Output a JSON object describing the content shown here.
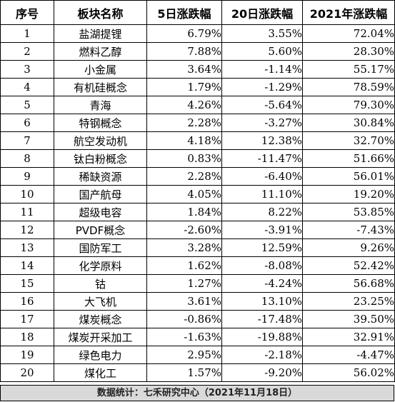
{
  "table": {
    "headers": [
      "序号",
      "板块名称",
      "5日涨跌幅",
      "20日涨跌幅",
      "2021年涨跌幅"
    ],
    "rows": [
      [
        "1",
        "盐湖提锂",
        "6.79%",
        "3.55%",
        "72.04%"
      ],
      [
        "2",
        "燃料乙醇",
        "7.88%",
        "5.60%",
        "28.30%"
      ],
      [
        "3",
        "小金属",
        "3.64%",
        "-1.14%",
        "55.17%"
      ],
      [
        "4",
        "有机硅概念",
        "1.79%",
        "-1.29%",
        "78.59%"
      ],
      [
        "5",
        "青海",
        "4.26%",
        "-5.64%",
        "79.30%"
      ],
      [
        "6",
        "特钢概念",
        "2.28%",
        "-3.27%",
        "30.84%"
      ],
      [
        "7",
        "航空发动机",
        "4.18%",
        "12.38%",
        "32.70%"
      ],
      [
        "8",
        "钛白粉概念",
        "0.83%",
        "-11.47%",
        "51.66%"
      ],
      [
        "9",
        "稀缺资源",
        "2.28%",
        "-6.40%",
        "56.01%"
      ],
      [
        "10",
        "国产航母",
        "4.05%",
        "11.10%",
        "19.20%"
      ],
      [
        "11",
        "超级电容",
        "1.84%",
        "8.22%",
        "53.85%"
      ],
      [
        "12",
        "PVDF概念",
        "-2.60%",
        "-3.91%",
        "-7.43%"
      ],
      [
        "13",
        "国防军工",
        "3.28%",
        "12.59%",
        "9.26%"
      ],
      [
        "14",
        "化学原料",
        "1.62%",
        "-8.08%",
        "52.42%"
      ],
      [
        "15",
        "钴",
        "1.27%",
        "-4.24%",
        "56.68%"
      ],
      [
        "16",
        "大飞机",
        "3.61%",
        "13.10%",
        "23.25%"
      ],
      [
        "17",
        "煤炭概念",
        "-0.86%",
        "-17.48%",
        "39.50%"
      ],
      [
        "18",
        "煤炭开采加工",
        "-1.63%",
        "-19.88%",
        "32.91%"
      ],
      [
        "19",
        "绿色电力",
        "2.95%",
        "-2.18%",
        "-4.47%"
      ],
      [
        "20",
        "煤化工",
        "1.57%",
        "-9.20%",
        "56.02%"
      ]
    ]
  },
  "footer": {
    "text": "数据统计：七禾研究中心（2021年11月18日）"
  }
}
